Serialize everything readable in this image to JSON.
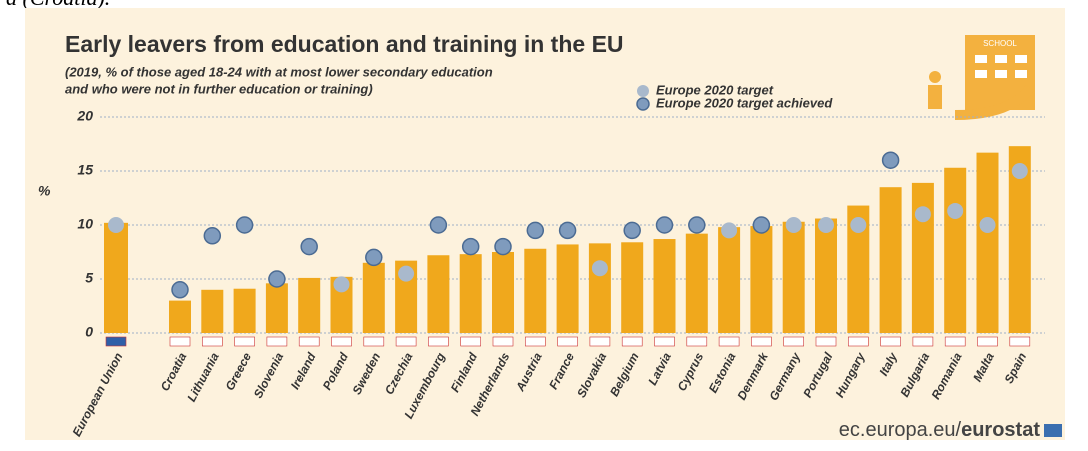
{
  "top_text": "a (Croatia).",
  "chart_data": {
    "type": "bar",
    "title": "Early leavers from education and training in the EU",
    "subtitle": [
      "(2019, % of those aged 18-24 with at most lower secondary education",
      "and who were not in further education or training)"
    ],
    "y_label": "%",
    "icon_label": "SCHOOL",
    "categories": [
      "European Union",
      "Croatia",
      "Lithuania",
      "Greece",
      "Slovenia",
      "Ireland",
      "Poland",
      "Sweden",
      "Czechia",
      "Luxembourg",
      "Finland",
      "Netherlands",
      "Austria",
      "France",
      "Slovakia",
      "Belgium",
      "Latvia",
      "Cyprus",
      "Estonia",
      "Denmark",
      "Germany",
      "Portugal",
      "Hungary",
      "Italy",
      "Bulgaria",
      "Romania",
      "Malta",
      "Spain"
    ],
    "values": [
      10.2,
      3.0,
      4.0,
      4.1,
      4.6,
      5.1,
      5.2,
      6.5,
      6.7,
      7.2,
      7.3,
      7.5,
      7.8,
      8.2,
      8.3,
      8.4,
      8.7,
      9.2,
      9.8,
      9.9,
      10.3,
      10.6,
      11.8,
      13.5,
      13.9,
      15.3,
      16.7,
      17.3
    ],
    "color": "#f0a81c",
    "series": [
      {
        "name": "Europe 2020 target",
        "color": "#a9b9cc",
        "values": [
          10,
          null,
          null,
          null,
          null,
          null,
          4.5,
          null,
          5.5,
          null,
          null,
          null,
          null,
          null,
          6,
          null,
          null,
          null,
          9.5,
          null,
          10,
          10,
          10,
          null,
          11,
          11.3,
          10,
          15
        ]
      },
      {
        "name": "Europe 2020 target achieved",
        "color": "#7f9bbd",
        "values": [
          null,
          4,
          9,
          10,
          5,
          8,
          null,
          7,
          null,
          10,
          8,
          8,
          9.5,
          9.5,
          null,
          9.5,
          10,
          10,
          null,
          10,
          null,
          null,
          null,
          16,
          null,
          null,
          null,
          null
        ]
      }
    ],
    "ylim": [
      0,
      20
    ],
    "yticks": [
      0,
      5,
      10,
      15,
      20
    ],
    "grid": true,
    "source": {
      "domain": "ec.europa.eu/",
      "brand": "eurostat"
    }
  }
}
